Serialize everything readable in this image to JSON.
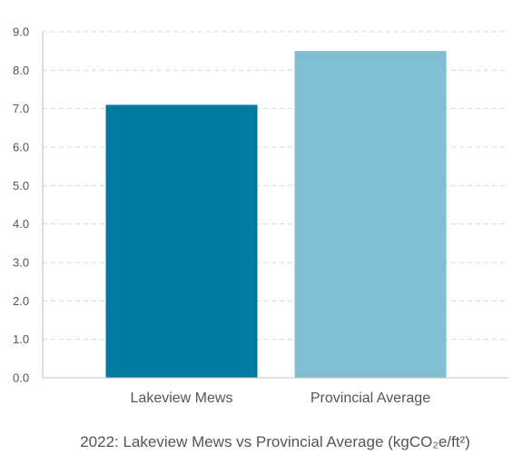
{
  "chart_data": {
    "type": "bar",
    "title": "2022: Lakeview Mews vs Provincial Average (kgCO₂e/ft²)",
    "categories": [
      "Lakeview Mews",
      "Provincial Average"
    ],
    "values": [
      7.1,
      8.5
    ],
    "colors": [
      "#007BA0",
      "#80BFD3"
    ],
    "ylim": [
      0,
      9
    ],
    "yticks": [
      "0.0",
      "1.0",
      "2.0",
      "3.0",
      "4.0",
      "5.0",
      "6.0",
      "7.0",
      "8.0",
      "9.0"
    ],
    "grid": true,
    "legend": "none"
  }
}
